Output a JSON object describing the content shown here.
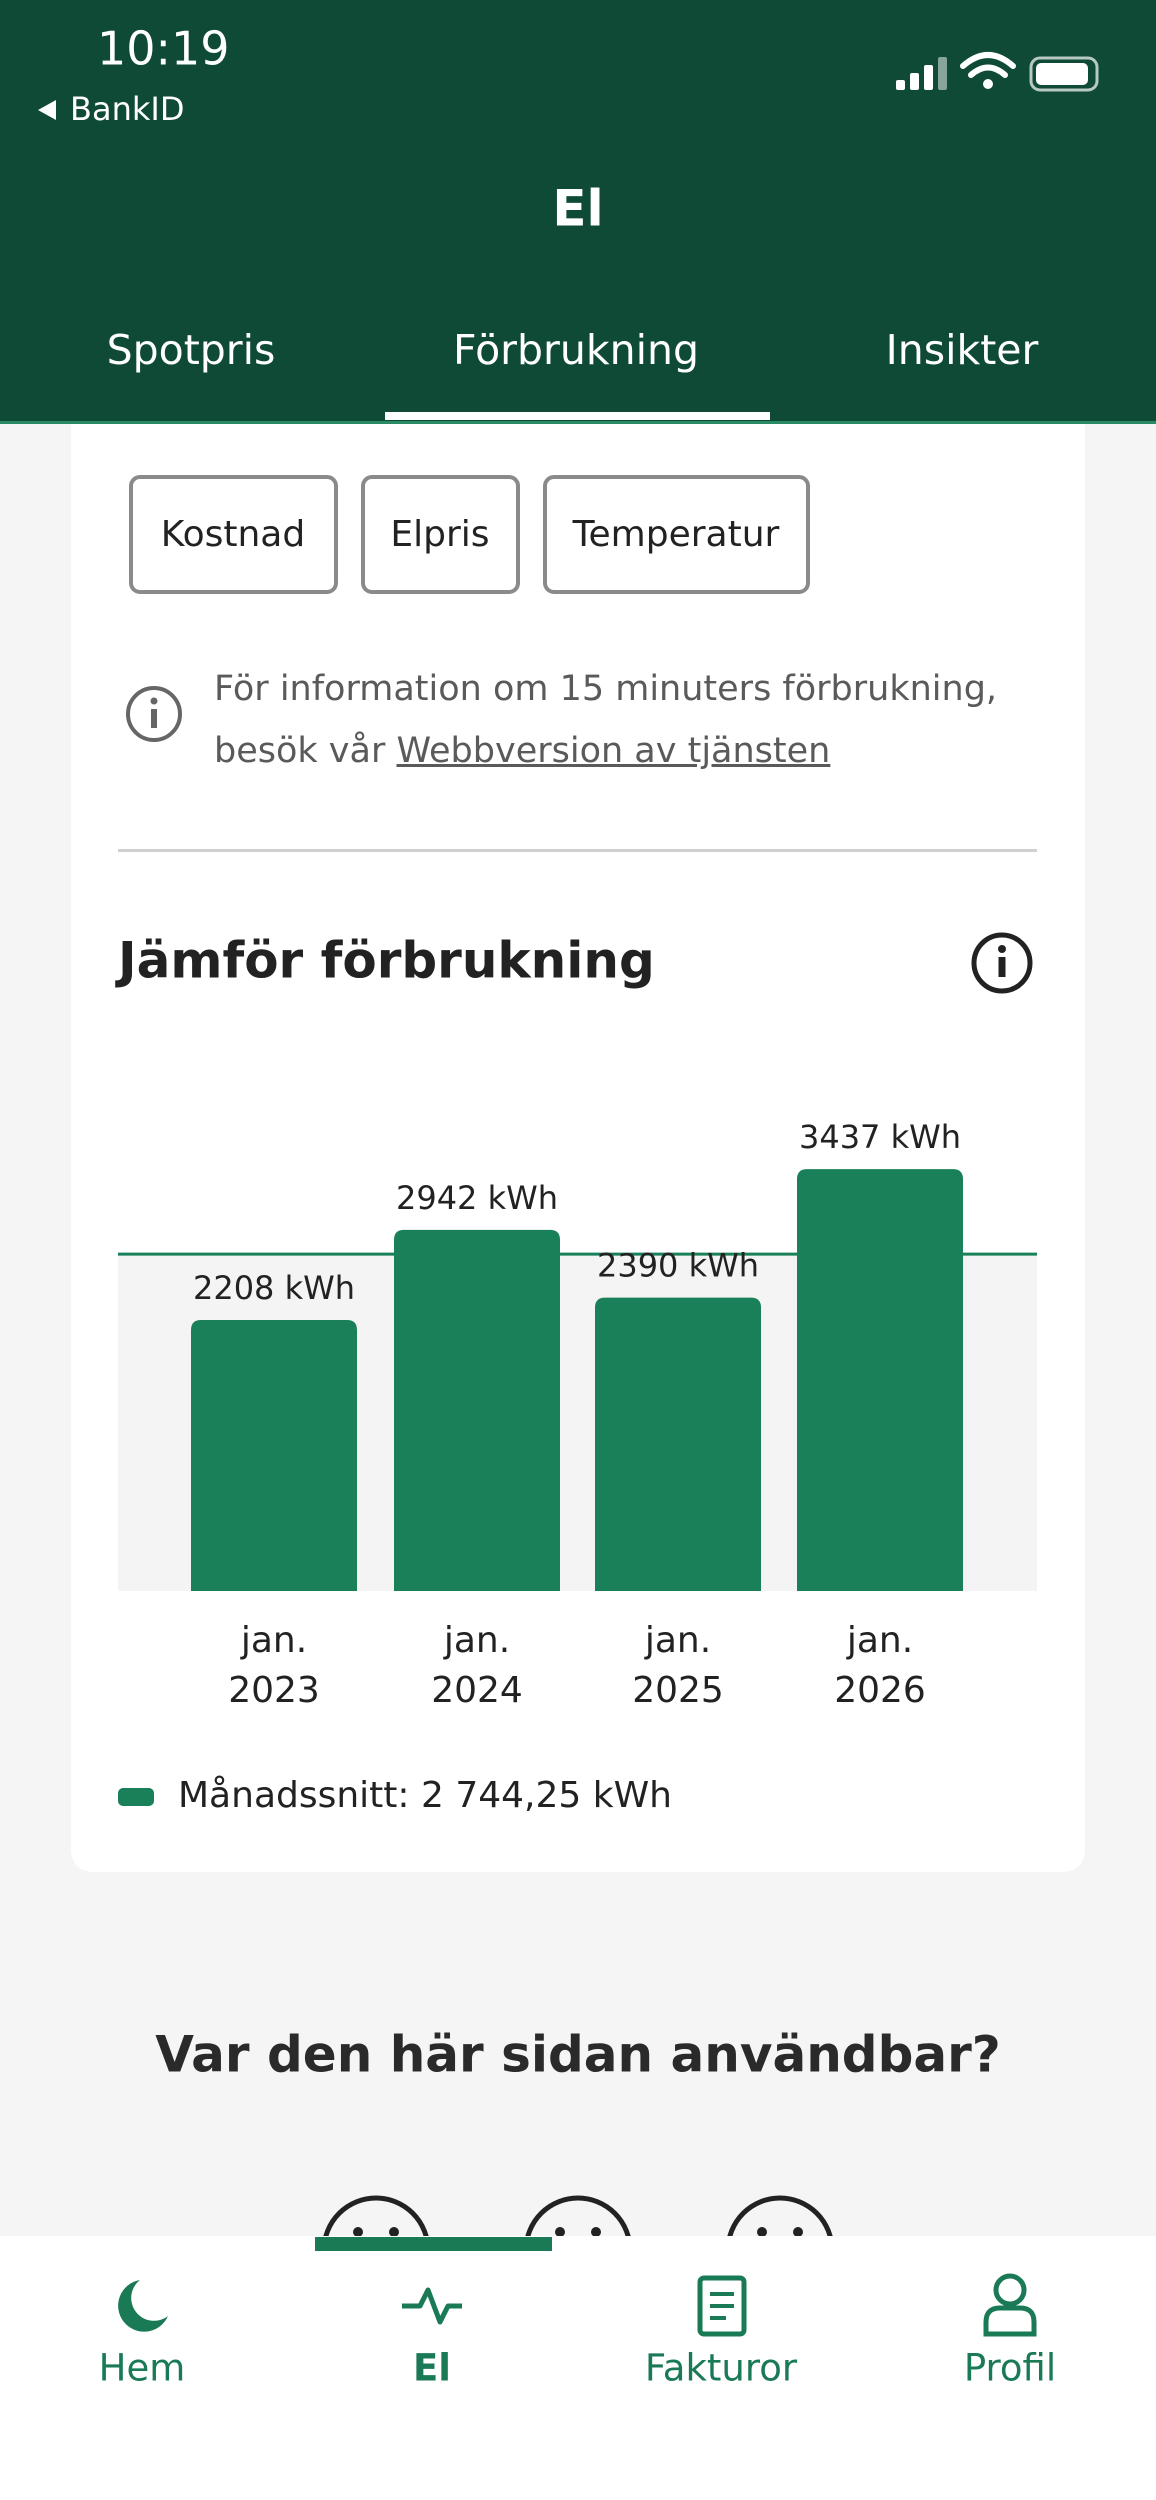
{
  "status_bar": {
    "time": "10:19",
    "back": "BankID"
  },
  "header": {
    "title": "El",
    "tabs": [
      "Spotpris",
      "Förbrukning",
      "Insikter"
    ]
  },
  "filters": [
    "Kostnad",
    "Elpris",
    "Temperatur"
  ],
  "info": {
    "text": "För information om 15 minuters förbrukning, besök vår ",
    "link": "Webbversion av tjänsten"
  },
  "chart_data": {
    "type": "bar",
    "title": "Jämför förbrukning",
    "categories": [
      "jan. 2023",
      "jan. 2024",
      "jan. 2025",
      "jan. 2026"
    ],
    "values": [
      2208,
      2942,
      2390,
      3437
    ],
    "value_labels": [
      "2208 kWh",
      "2942 kWh",
      "2390 kWh",
      "3437 kWh"
    ],
    "color": "#1a8059",
    "ylim": [
      0,
      4000
    ],
    "average": 2744.25,
    "legend": "Månadssnitt: 2 744,25 kWh"
  },
  "feedback": {
    "question": "Var den här sidan användbar?"
  },
  "nav": [
    "Hem",
    "El",
    "Fakturor",
    "Profil"
  ]
}
